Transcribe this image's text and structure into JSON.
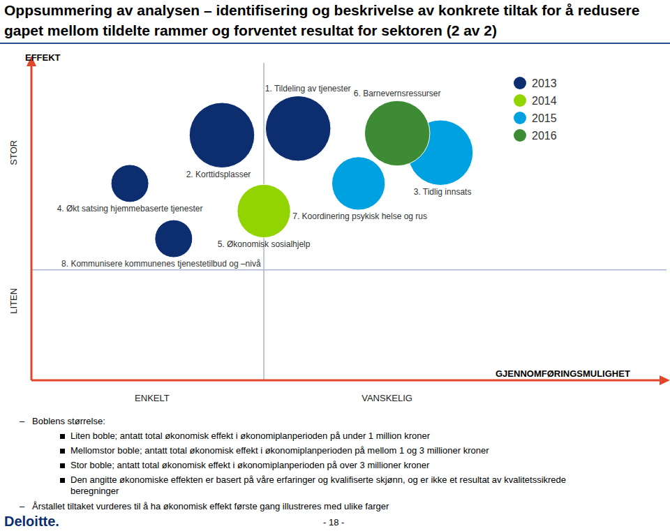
{
  "chart_data": {
    "type": "scatter",
    "title": "Oppsummering av analysen – identifisering og beskrivelse av konkrete tiltak for å redusere gapet mellom tildelte rammer og forventet resultat for sektoren (2 av 2)",
    "x_label": "GJENNOMFØRINGSMULIGHET",
    "y_label": "EFFEKT",
    "xlim": [
      0,
      100
    ],
    "ylim": [
      0,
      100
    ],
    "xticks": [
      {
        "value": 19,
        "label": "ENKELT"
      },
      {
        "value": 56,
        "label": "VANSKELIG"
      }
    ],
    "yticks": [
      {
        "value": 25,
        "label": "LITEN"
      },
      {
        "value": 71.7,
        "label": "STOR"
      }
    ],
    "grid": false,
    "legend": "upper right",
    "dividers": {
      "x": 36.6,
      "y": 34.8
    },
    "series": [
      {
        "name": "2013",
        "color": "#0c2d6e",
        "points": [
          {
            "label": "1. Tildeling av tjenester",
            "x": 42,
            "y": 79.3,
            "size": 3
          },
          {
            "label": "2. Korttidsplasser",
            "x": 30,
            "y": 77.2,
            "size": 3
          },
          {
            "label": "4. Økt satsing hjemmebaserte tjenester",
            "x": 15.5,
            "y": 62,
            "size": 1
          },
          {
            "label": "8. Kommunisere kommunenes tjenestetilbud og –nivå",
            "x": 22.4,
            "y": 44.6,
            "size": 1
          }
        ]
      },
      {
        "name": "2014",
        "color": "#92d400",
        "points": [
          {
            "label": "5. Økonomisk sosialhjelp",
            "x": 36.6,
            "y": 53.3,
            "size": 2
          }
        ]
      },
      {
        "name": "2015",
        "color": "#00a1e0",
        "points": [
          {
            "label": "3. Tidlig innsats",
            "x": 64.4,
            "y": 71.7,
            "size": 3
          },
          {
            "label": "7. Koordinering psykisk helse og rus",
            "x": 51.5,
            "y": 62,
            "size": 2
          }
        ]
      },
      {
        "name": "2016",
        "color": "#3d8b35",
        "points": [
          {
            "label": "6. Barnevernsressurser",
            "x": 57.6,
            "y": 77.8,
            "size": 3
          }
        ]
      }
    ],
    "notes": {
      "heading": "Boblens størrelse:",
      "items": [
        "Liten boble; antatt total økonomisk effekt i økonomiplanperioden på under 1 million kroner",
        "Mellomstor boble; antatt total økonomisk effekt i økonomiplanperioden på mellom 1 og 3 millioner kroner",
        "Stor boble; antatt total økonomisk effekt i økonomiplanperioden på over 3 millioner kroner",
        "Den angitte økonomiske effekten er basert på våre erfaringer og kvalifiserte skjønn, og er ikke et resultat av kvalitetssikrede beregninger"
      ],
      "footnote": "Årstallet tiltaket vurderes til å ha økonomisk effekt første gang illustreres med ulike farger"
    },
    "footer": {
      "logo": "Deloitte.",
      "page": "- 18 -"
    }
  }
}
